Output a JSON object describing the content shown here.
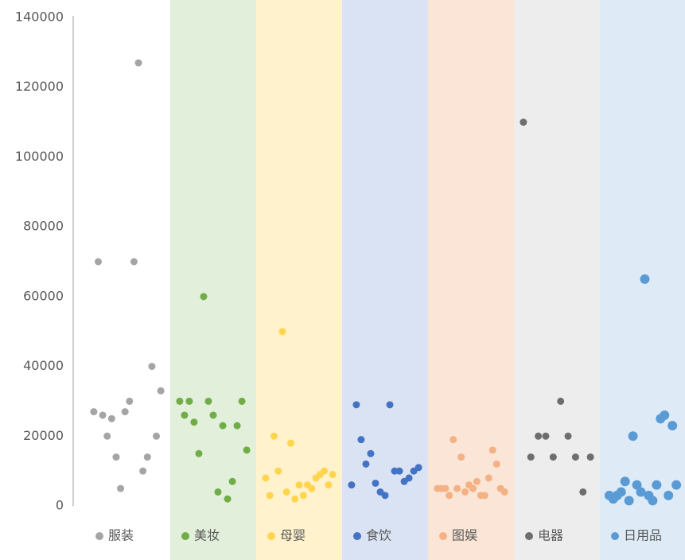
{
  "chart_data": {
    "type": "strip",
    "ylim": [
      0,
      140000
    ],
    "yticks": [
      0,
      20000,
      40000,
      60000,
      80000,
      100000,
      120000,
      140000
    ],
    "series": [
      {
        "name": "服装",
        "color": "#a5a5a5",
        "band_color": "#ffffff",
        "values": [
          27000,
          70000,
          26000,
          20000,
          25000,
          14000,
          5000,
          27000,
          30000,
          70000,
          127000,
          10000,
          14000,
          40000,
          20000,
          33000
        ]
      },
      {
        "name": "美妆",
        "color": "#70ad47",
        "band_color": "#e2efda",
        "values": [
          30000,
          26000,
          30000,
          24000,
          15000,
          60000,
          30000,
          26000,
          4000,
          23000,
          2000,
          7000,
          23000,
          30000,
          16000
        ]
      },
      {
        "name": "母婴",
        "color": "#ffd54f",
        "band_color": "#fff2cc",
        "values": [
          8000,
          3000,
          20000,
          10000,
          50000,
          4000,
          18000,
          2000,
          6000,
          3000,
          6000,
          5000,
          8000,
          9000,
          10000,
          6000,
          9000
        ]
      },
      {
        "name": "食饮",
        "color": "#4472c4",
        "band_color": "#dae3f3",
        "values": [
          6000,
          29000,
          19000,
          12000,
          15000,
          6500,
          4000,
          3000,
          29000,
          10000,
          10000,
          7000,
          8000,
          10000,
          11000
        ]
      },
      {
        "name": "图娱",
        "color": "#f4b183",
        "band_color": "#fbe5d6",
        "values": [
          5000,
          5000,
          5000,
          3000,
          19000,
          5000,
          14000,
          4000,
          6000,
          5000,
          7000,
          3000,
          3000,
          8000,
          16000,
          12000,
          5000,
          4000
        ]
      },
      {
        "name": "电器",
        "color": "#6e6e6e",
        "band_color": "#ededed",
        "values": [
          110000,
          14000,
          20000,
          20000,
          14000,
          30000,
          20000,
          14000,
          4000,
          14000
        ]
      },
      {
        "name": "日用品",
        "color": "#5b9bd5",
        "band_color": "#deebf7",
        "values": [
          3000,
          2000,
          3000,
          4000,
          7000,
          1500,
          20000,
          6000,
          4000,
          65000,
          3000,
          1500,
          6000,
          25000,
          26000,
          3000,
          23000,
          6000
        ]
      }
    ]
  }
}
